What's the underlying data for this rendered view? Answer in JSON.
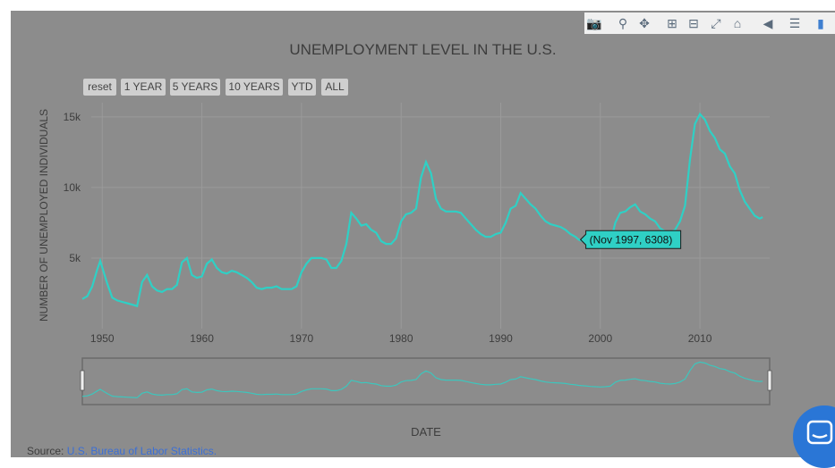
{
  "chart_data": {
    "type": "line",
    "title": "UNEMPLOYMENT LEVEL IN THE U.S.",
    "xlabel": "DATE",
    "ylabel": "NUMBER OF UNEMPLOYED INDIVIDUALS",
    "xlim": [
      1948,
      2017
    ],
    "ylim": [
      0,
      16000
    ],
    "x_ticks": [
      "1950",
      "1960",
      "1970",
      "1980",
      "1990",
      "2000",
      "2010"
    ],
    "y_ticks": [
      "5k",
      "10k",
      "15k"
    ],
    "grid": true,
    "line_color": "#2fd0c5",
    "series": [
      {
        "x": [
          1948.0,
          1948.5,
          1949.0,
          1949.5,
          1949.8,
          1950.5,
          1951.0,
          1951.5,
          1952.0,
          1952.5,
          1953.0,
          1953.5,
          1954.0,
          1954.5,
          1955.0,
          1955.5,
          1956.0,
          1956.5,
          1957.0,
          1957.5,
          1958.0,
          1958.5,
          1959.0,
          1959.5,
          1960.0,
          1960.5,
          1961.0,
          1961.5,
          1962.0,
          1962.5,
          1963.0,
          1963.5,
          1964.0,
          1964.5,
          1965.0,
          1965.5,
          1966.0,
          1966.5,
          1967.0,
          1967.5,
          1968.0,
          1968.5,
          1969.0,
          1969.5,
          1970.0,
          1970.5,
          1971.0,
          1971.5,
          1972.0,
          1972.5,
          1973.0,
          1973.5,
          1974.0,
          1974.5,
          1975.0,
          1975.5,
          1976.0,
          1976.5,
          1977.0,
          1977.5,
          1978.0,
          1978.5,
          1979.0,
          1979.5,
          1980.0,
          1980.5,
          1981.0,
          1981.5,
          1982.0,
          1982.5,
          1983.0,
          1983.5,
          1984.0,
          1984.5,
          1985.0,
          1985.5,
          1986.0,
          1986.5,
          1987.0,
          1987.5,
          1988.0,
          1988.5,
          1989.0,
          1989.5,
          1990.0,
          1990.5,
          1991.0,
          1991.5,
          1992.0,
          1992.5,
          1993.0,
          1993.5,
          1994.0,
          1994.5,
          1995.0,
          1995.5,
          1996.0,
          1996.5,
          1997.0,
          1997.5,
          1997.83,
          1998.5,
          1999.0,
          1999.5,
          2000.0,
          2000.5,
          2001.0,
          2001.5,
          2002.0,
          2002.5,
          2003.0,
          2003.5,
          2004.0,
          2004.5,
          2005.0,
          2005.5,
          2006.0,
          2006.5,
          2007.0,
          2007.5,
          2008.0,
          2008.5,
          2009.0,
          2009.5,
          2010.0,
          2010.5,
          2011.0,
          2011.5,
          2012.0,
          2012.5,
          2013.0,
          2013.5,
          2014.0,
          2014.5,
          2015.0,
          2015.5,
          2016.0,
          2016.3
        ],
        "y": [
          2100,
          2300,
          3000,
          4200,
          4800,
          3200,
          2200,
          2000,
          1900,
          1800,
          1700,
          1600,
          3300,
          3800,
          3000,
          2700,
          2600,
          2800,
          2800,
          3100,
          4700,
          5000,
          3800,
          3600,
          3700,
          4600,
          4900,
          4300,
          4000,
          3900,
          4100,
          4000,
          3800,
          3600,
          3300,
          2900,
          2800,
          2900,
          2900,
          3000,
          2800,
          2800,
          2800,
          3000,
          4000,
          4600,
          5000,
          5000,
          5000,
          4900,
          4300,
          4300,
          4800,
          6000,
          8200,
          7800,
          7300,
          7400,
          7000,
          6800,
          6200,
          6000,
          6000,
          6400,
          7600,
          8100,
          8200,
          8500,
          10700,
          11800,
          11000,
          9200,
          8500,
          8300,
          8300,
          8300,
          8200,
          7800,
          7400,
          7000,
          6700,
          6500,
          6500,
          6700,
          6800,
          7500,
          8500,
          8700,
          9600,
          9200,
          8800,
          8500,
          8000,
          7600,
          7400,
          7300,
          7200,
          7000,
          6700,
          6500,
          6308,
          6100,
          5900,
          5800,
          5700,
          5800,
          6000,
          7500,
          8200,
          8300,
          8600,
          8800,
          8300,
          8100,
          7800,
          7600,
          7100,
          6900,
          6800,
          7000,
          7600,
          8700,
          12000,
          14500,
          15200,
          14800,
          14000,
          13500,
          12700,
          12400,
          11500,
          11000,
          9800,
          9000,
          8500,
          8000,
          7800,
          7900
        ]
      }
    ],
    "tooltip": {
      "text": "(Nov 1997, 6308)",
      "x": 1997.83,
      "y": 6308
    }
  },
  "range_buttons": [
    "reset",
    "1 YEAR",
    "5 YEARS",
    "10 YEARS",
    "YTD",
    "ALL"
  ],
  "modebar": [
    "camera-icon",
    "zoom-icon",
    "pan-icon",
    "zoom-in-icon",
    "zoom-out-icon",
    "autoscale-icon",
    "home-icon",
    "closest-hover-icon",
    "compare-hover-icon",
    "plotly-logo"
  ],
  "source": {
    "label": "Source:",
    "link_text": "U.S. Bureau of Labor Statistics."
  }
}
